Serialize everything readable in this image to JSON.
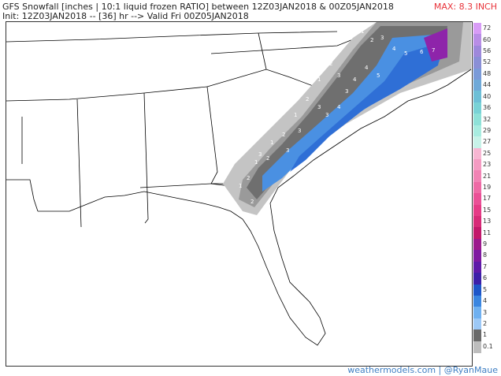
{
  "header": {
    "title_line1": "GFS Snowfall [inches | 10:1 liquid frozen RATIO] between 12Z03JAN2018 & 00Z05JAN2018",
    "title_line2": "Init: 12Z03JAN2018 -- [36] hr --> Valid Fri 00Z05JAN2018",
    "max_label": "MAX: 8.3 INCH"
  },
  "map": {
    "region": "Southeastern United States",
    "colors": {
      "land": "#ffffff",
      "borders": "#000000",
      "snow_light_gray": "#c4c4c4",
      "snow_mid_gray": "#9a9a9a",
      "snow_dark_gray": "#6f6f6f",
      "snow_2in": "#5c5c5c",
      "snow_3in_blue": "#7bb4f0",
      "snow_4in_blue": "#4a90e2",
      "snow_5in_blue": "#2f6fd6",
      "snow_6in_purple": "#6a1b9a",
      "snow_7in_purple": "#8e24aa"
    },
    "contour_labels": [
      "1",
      "2",
      "3",
      "4",
      "5",
      "6",
      "7",
      "3",
      "4",
      "2",
      "1",
      "3",
      "4",
      "5",
      "3",
      "2",
      "1",
      "3",
      "4",
      "3",
      "2",
      "1",
      "3",
      "2",
      "1",
      "3",
      "2",
      "1",
      "2"
    ]
  },
  "legend": {
    "unit": "inches",
    "entries": [
      {
        "label": "72",
        "color": "#d89cf6"
      },
      {
        "label": "60",
        "color": "#b98de6"
      },
      {
        "label": "56",
        "color": "#9e88db"
      },
      {
        "label": "52",
        "color": "#8a8fd6"
      },
      {
        "label": "48",
        "color": "#7a9ad8"
      },
      {
        "label": "44",
        "color": "#6fa9d8"
      },
      {
        "label": "40",
        "color": "#6dbfd6"
      },
      {
        "label": "36",
        "color": "#79d2d6"
      },
      {
        "label": "32",
        "color": "#8ee1d8"
      },
      {
        "label": "29",
        "color": "#a8ece0"
      },
      {
        "label": "27",
        "color": "#c7f2e8"
      },
      {
        "label": "25",
        "color": "#f7b6d2"
      },
      {
        "label": "23",
        "color": "#f49bc2"
      },
      {
        "label": "21",
        "color": "#f183b4"
      },
      {
        "label": "19",
        "color": "#ee6aa5"
      },
      {
        "label": "17",
        "color": "#ea5096"
      },
      {
        "label": "15",
        "color": "#e53a86"
      },
      {
        "label": "13",
        "color": "#d72a77"
      },
      {
        "label": "11",
        "color": "#c2186a"
      },
      {
        "label": "9",
        "color": "#9c1a8c"
      },
      {
        "label": "8",
        "color": "#7e1aa0"
      },
      {
        "label": "7",
        "color": "#5e1aa8"
      },
      {
        "label": "6",
        "color": "#3c1fa8"
      },
      {
        "label": "5",
        "color": "#1e56c8"
      },
      {
        "label": "4",
        "color": "#3b86e0"
      },
      {
        "label": "3",
        "color": "#6fb0f0"
      },
      {
        "label": "2",
        "color": "#9cc8f6"
      },
      {
        "label": "1",
        "color": "#6a6a6a"
      },
      {
        "label": "0.1",
        "color": "#bdbdbd"
      }
    ]
  },
  "footer": {
    "credit": "weathermodels.com | @RyanMaue"
  }
}
